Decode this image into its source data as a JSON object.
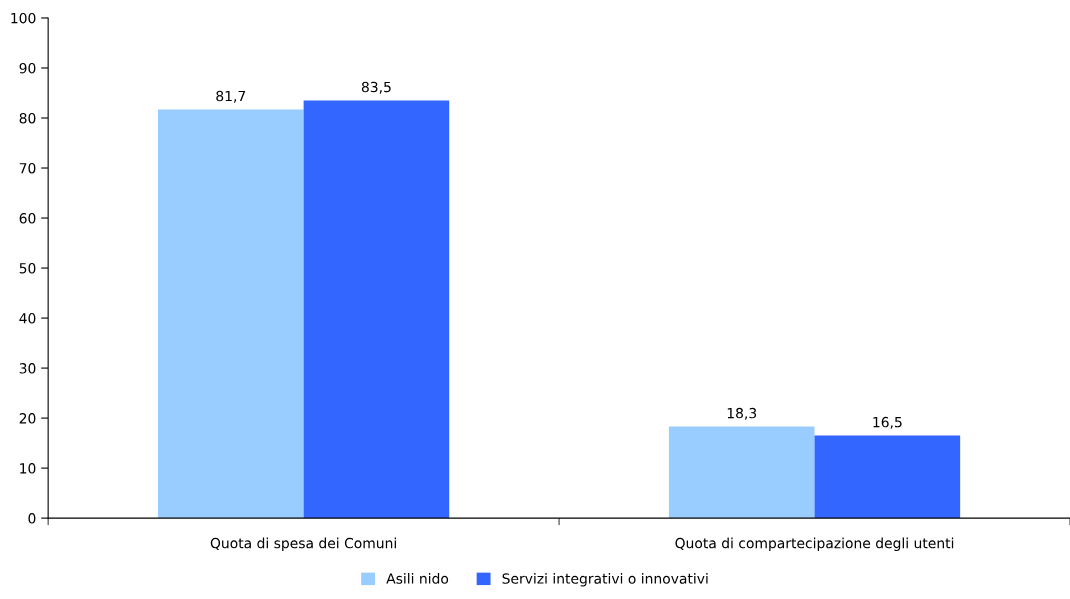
{
  "chart_data": {
    "type": "bar",
    "categories": [
      "Quota di spesa dei Comuni",
      "Quota di compartecipazione degli utenti"
    ],
    "series": [
      {
        "name": "Asili nido",
        "color": "#99ccff",
        "values": [
          81.7,
          18.3
        ],
        "value_labels": [
          "81,7",
          "18,3"
        ]
      },
      {
        "name": "Servizi integrativi o innovativi",
        "color": "#3366ff",
        "values": [
          83.5,
          16.5
        ],
        "value_labels": [
          "83,5",
          "16,5"
        ]
      }
    ],
    "ylim": [
      0,
      100
    ],
    "yticks": [
      0,
      10,
      20,
      30,
      40,
      50,
      60,
      70,
      80,
      90,
      100
    ],
    "grid": false,
    "legend": "bottom"
  }
}
